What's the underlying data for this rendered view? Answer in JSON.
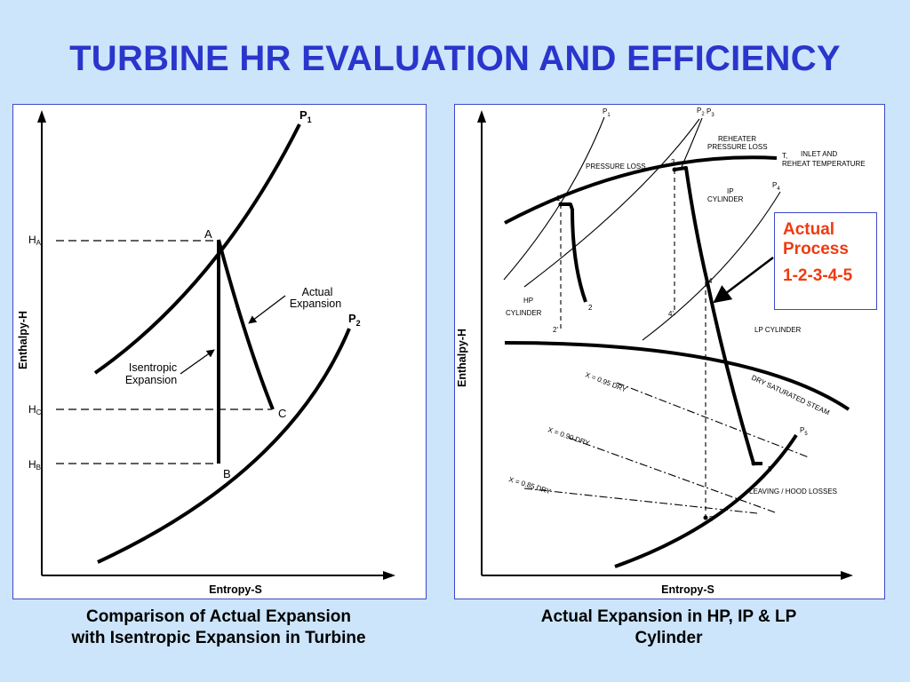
{
  "title": "TURBINE HR EVALUATION AND EFFICIENCY",
  "left": {
    "p1": "P",
    "p1_sub": "1",
    "p2": "P",
    "p2_sub": "2",
    "ha": "H",
    "ha_sub": "A",
    "hc": "H",
    "hc_sub": "C",
    "hb": "H",
    "hb_sub": "B",
    "pt_a": "A",
    "pt_b": "B",
    "pt_c": "C",
    "actual_1": "Actual",
    "actual_2": "Expansion",
    "isen_1": "Isentropic",
    "isen_2": "Expansion",
    "ylabel": "Enthalpy-H",
    "xlabel": "Entropy-S"
  },
  "right": {
    "p1": "P",
    "p1_sub": "1",
    "p2": "P",
    "p2_sub": "2",
    "p3": "P",
    "p3_sub": "3",
    "p4": "P",
    "p4_sub": "4",
    "p5": "P",
    "p5_sub": "5",
    "t1": "T,",
    "reheater_1": "REHEATER",
    "reheater_2": "PRESSURE LOSS",
    "inlet_1": "INLET AND",
    "inlet_2": "REHEAT TEMPERATURE",
    "pressure_loss": "PRESSURE LOSS",
    "ip_1": "IP",
    "ip_2": "CYLINDER",
    "hp_1": "HP",
    "hp_2": "CYLINDER",
    "lp": "LP CYLINDER",
    "dry_sat": "DRY SATURATED STEAM",
    "x95": "X = 0.95 DRY",
    "x90": "X = 0.90 DRY",
    "x85": "X = 0.85 DRY",
    "leaving": "LEAVING / HOOD LOSSES",
    "pt1": "1",
    "pt2": "2",
    "pt2p": "2'",
    "pt3": "3",
    "pt4": "4",
    "pt4p": "4'",
    "pt5": "5",
    "pt5p": "5'",
    "ylabel": "Enthalpy-H",
    "xlabel": "Entropy-S"
  },
  "callout": {
    "line1": "Actual",
    "line2": "Process",
    "line3": "1-2-3-4-5"
  },
  "captions": {
    "left_1": "Comparison of Actual Expansion",
    "left_2": "with Isentropic Expansion in Turbine",
    "right_1": "Actual Expansion in HP, IP & LP",
    "right_2": "Cylinder"
  },
  "colors": {
    "background": "#cce5fb",
    "title": "#2a35cc",
    "callout_text": "#f03a10",
    "panel_border": "#3b49c9"
  }
}
